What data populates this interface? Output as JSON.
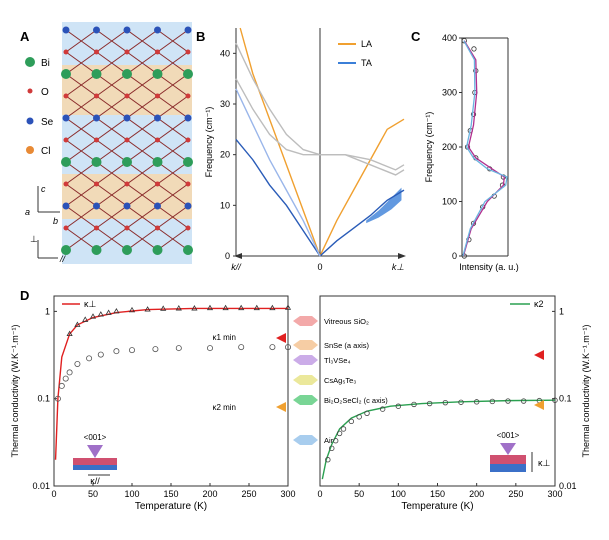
{
  "panels": {
    "a": "A",
    "b": "B",
    "c": "C",
    "d": "D"
  },
  "legend_a": {
    "items": [
      {
        "label": "Bi",
        "color": "#2e9d5a"
      },
      {
        "label": "O",
        "color": "#d03a3a"
      },
      {
        "label": "Se",
        "color": "#2b52b8"
      },
      {
        "label": "Cl",
        "color": "#e88a35"
      }
    ],
    "axis_c": "c",
    "axis_a": "a",
    "axis_b": "b",
    "perp": "⊥",
    "par": "//"
  },
  "colors": {
    "la": "#f0a030",
    "ta": "#3b7fd8",
    "ta_dark": "#2a5cb8",
    "grey": "#bdbdbd",
    "kappa1": "#e02020",
    "kappa2": "#2aa050",
    "magenta": "#b0308f",
    "cyan": "#6ab3e0"
  },
  "chart_data": [
    {
      "id": "B",
      "type": "line",
      "title": "",
      "ylabel": "Frequency (cm⁻¹)",
      "ylim": [
        0,
        45
      ],
      "yticks": [
        "0",
        "10",
        "20",
        "30",
        "40"
      ],
      "xlabels": {
        "left": "k//",
        "center": "0",
        "right": "k⊥"
      },
      "legend": [
        "LA",
        "TA"
      ],
      "series": [
        {
          "name": "LA",
          "branch": "left",
          "x": [
            0,
            0.2,
            0.4,
            0.6,
            0.8,
            0.95
          ],
          "y": [
            0,
            9,
            18,
            27,
            36,
            45
          ]
        },
        {
          "name": "LA",
          "branch": "right",
          "x": [
            0,
            0.2,
            0.4,
            0.6,
            0.8,
            1.0
          ],
          "y": [
            0,
            7,
            13,
            19,
            25,
            27
          ]
        },
        {
          "name": "TA",
          "branch": "left",
          "x": [
            0,
            0.2,
            0.4,
            0.6,
            0.8,
            1.0
          ],
          "y": [
            0,
            5,
            10,
            14,
            19,
            23
          ]
        },
        {
          "name": "TA",
          "branch": "right",
          "x": [
            0,
            0.2,
            0.4,
            0.6,
            0.8,
            1.0
          ],
          "y": [
            0,
            3,
            5.5,
            8,
            11,
            13
          ]
        },
        {
          "name": "TA2",
          "branch": "left",
          "x": [
            0,
            0.2,
            0.4,
            0.6,
            0.8,
            1.0
          ],
          "y": [
            0,
            7,
            13,
            19,
            26,
            33
          ]
        },
        {
          "name": "optic1",
          "branch": "left",
          "x": [
            1.0,
            0.8,
            0.6,
            0.4,
            0.2,
            0.0
          ],
          "y": [
            42,
            35,
            29,
            24,
            21,
            20
          ]
        },
        {
          "name": "optic2",
          "branch": "left",
          "x": [
            1.0,
            0.8,
            0.6,
            0.4,
            0.2,
            0.0
          ],
          "y": [
            35,
            29,
            24,
            21,
            20,
            20
          ]
        },
        {
          "name": "optic1",
          "branch": "right",
          "x": [
            0,
            0.3,
            0.6,
            0.9,
            1.0
          ],
          "y": [
            20,
            20,
            19,
            17,
            18
          ]
        },
        {
          "name": "optic2",
          "branch": "right",
          "x": [
            0,
            0.3,
            0.6,
            0.9,
            1.0
          ],
          "y": [
            20,
            20,
            18,
            16,
            17
          ]
        }
      ]
    },
    {
      "id": "C",
      "type": "line",
      "ylabel": "Frequency (cm⁻¹)",
      "xlabel": "Intensity (a. u.)",
      "ylim": [
        0,
        400
      ],
      "yticks": [
        "0",
        "100",
        "200",
        "300",
        "400"
      ],
      "series": [
        {
          "name": "data",
          "y": [
            0,
            30,
            60,
            90,
            110,
            130,
            145,
            160,
            180,
            200,
            230,
            260,
            300,
            340,
            380,
            395
          ],
          "x": [
            0.05,
            0.15,
            0.25,
            0.45,
            0.7,
            0.88,
            0.9,
            0.6,
            0.3,
            0.12,
            0.18,
            0.25,
            0.28,
            0.3,
            0.26,
            0.05
          ]
        },
        {
          "name": "fit_magenta",
          "y": [
            0,
            50,
            100,
            130,
            145,
            160,
            180,
            200,
            240,
            300,
            360,
            395
          ],
          "x": [
            0.03,
            0.2,
            0.55,
            0.9,
            0.92,
            0.65,
            0.3,
            0.14,
            0.25,
            0.32,
            0.3,
            0.05
          ]
        },
        {
          "name": "fit_cyan",
          "y": [
            0,
            50,
            100,
            130,
            145,
            160,
            180,
            200,
            240,
            300,
            360,
            395
          ],
          "x": [
            0.02,
            0.18,
            0.5,
            0.95,
            0.98,
            0.55,
            0.25,
            0.1,
            0.2,
            0.28,
            0.27,
            0.04
          ]
        }
      ]
    },
    {
      "id": "D1",
      "type": "line",
      "ylabel": "Thermal conductivity (W.K⁻¹.m⁻¹)",
      "xlabel": "Temperature (K)",
      "xlim": [
        0,
        300
      ],
      "ylim": [
        0.01,
        1.5
      ],
      "yscale": "log",
      "xticks": [
        "0",
        "50",
        "100",
        "150",
        "200",
        "250",
        "300"
      ],
      "yticks": [
        "0.01",
        "0.1",
        "1"
      ],
      "legend": "κ⊥",
      "series": [
        {
          "name": "kappa1_fit",
          "x": [
            2,
            5,
            10,
            20,
            30,
            50,
            80,
            120,
            180,
            250,
            300
          ],
          "y": [
            0.02,
            0.1,
            0.3,
            0.55,
            0.7,
            0.85,
            0.97,
            1.05,
            1.08,
            1.08,
            1.08
          ]
        },
        {
          "name": "kappa_par_data",
          "x": [
            5,
            10,
            15,
            20,
            30,
            45,
            60,
            80,
            100,
            130,
            160,
            200,
            240,
            280,
            300
          ],
          "y": [
            0.1,
            0.14,
            0.17,
            0.2,
            0.25,
            0.29,
            0.32,
            0.35,
            0.36,
            0.37,
            0.38,
            0.38,
            0.39,
            0.39,
            0.39
          ]
        },
        {
          "name": "kappa1_data",
          "x": [
            20,
            30,
            40,
            50,
            60,
            70,
            80,
            100,
            120,
            140,
            160,
            180,
            200,
            220,
            240,
            260,
            280,
            300
          ],
          "y": [
            0.55,
            0.7,
            0.8,
            0.87,
            0.92,
            0.96,
            1.0,
            1.03,
            1.05,
            1.07,
            1.08,
            1.08,
            1.09,
            1.09,
            1.09,
            1.09,
            1.09,
            1.1
          ]
        }
      ],
      "annotations": {
        "kappa1_min": "κ1 min",
        "kappa2_min": "κ2 min",
        "kappa_par": "κ//",
        "orient": "<001>"
      }
    },
    {
      "id": "D2",
      "type": "line",
      "ylabel": "Thermal conductivity (W.K⁻¹.m⁻¹)",
      "xlabel": "Temperature (K)",
      "xlim": [
        0,
        300
      ],
      "ylim": [
        0.01,
        1.5
      ],
      "yscale": "log",
      "xticks": [
        "0",
        "50",
        "100",
        "150",
        "200",
        "250",
        "300"
      ],
      "yticks": [
        "0.01",
        "0.1",
        "1"
      ],
      "legend": "κ2",
      "series": [
        {
          "name": "kappa2_fit",
          "x": [
            3,
            8,
            15,
            25,
            40,
            60,
            90,
            130,
            180,
            240,
            300
          ],
          "y": [
            0.012,
            0.02,
            0.03,
            0.045,
            0.06,
            0.072,
            0.082,
            0.088,
            0.092,
            0.095,
            0.096
          ]
        },
        {
          "name": "kappa2_data",
          "x": [
            10,
            15,
            20,
            25,
            30,
            40,
            50,
            60,
            80,
            100,
            120,
            140,
            160,
            180,
            200,
            220,
            240,
            260,
            280,
            300
          ],
          "y": [
            0.02,
            0.027,
            0.033,
            0.04,
            0.045,
            0.055,
            0.062,
            0.068,
            0.076,
            0.082,
            0.086,
            0.088,
            0.09,
            0.091,
            0.092,
            0.093,
            0.094,
            0.094,
            0.095,
            0.096
          ]
        }
      ],
      "annotations": {
        "orient": "<001>",
        "kappa_perp": "κ⊥"
      }
    }
  ],
  "materials": [
    {
      "label": "Vitreous SiO₂",
      "color": "#f2a0a0"
    },
    {
      "label": "SnSe (a axis)",
      "color": "#f5c89a"
    },
    {
      "label": "Tl₃VSe₄",
      "color": "#c5a3e6"
    },
    {
      "label": "CsAg₅Te₃",
      "color": "#e9e690"
    },
    {
      "label": "Bi₂O₂SeCl₂ (c axis)",
      "color": "#6ad08a"
    },
    {
      "label": "Air",
      "color": "#9fc8ec"
    }
  ]
}
